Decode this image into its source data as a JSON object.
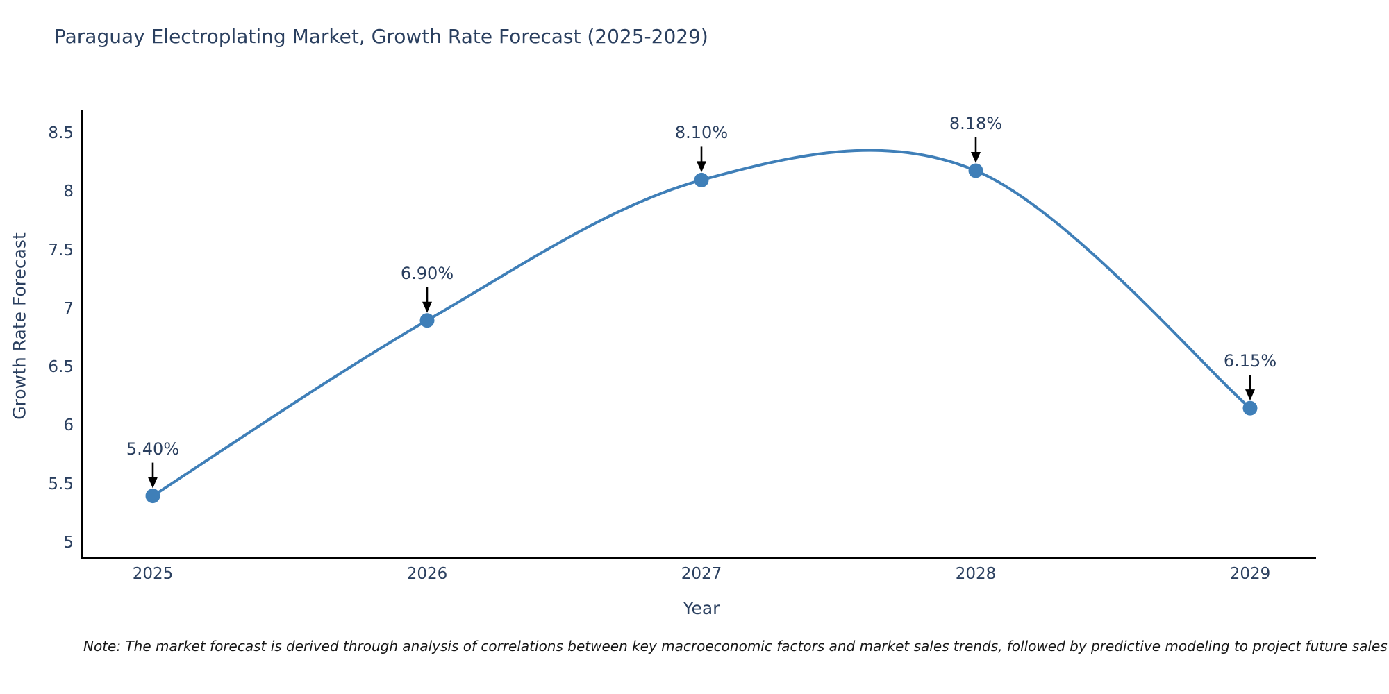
{
  "chart_data": {
    "type": "line",
    "title": "Paraguay Electroplating Market, Growth Rate Forecast (2025-2029)",
    "xlabel": "Year",
    "ylabel": "Growth Rate Forecast",
    "categories": [
      "2025",
      "2026",
      "2027",
      "2028",
      "2029"
    ],
    "values": [
      5.4,
      6.9,
      8.1,
      8.18,
      6.15
    ],
    "point_labels": [
      "5.40%",
      "6.90%",
      "8.10%",
      "8.18%",
      "6.15%"
    ],
    "series_name": "Growth Rate Forecast",
    "ylim": [
      5,
      8.5
    ],
    "yticks": [
      {
        "value": 5,
        "label": "5"
      },
      {
        "value": 5.5,
        "label": "5.5"
      },
      {
        "value": 6,
        "label": "6"
      },
      {
        "value": 6.5,
        "label": "6.5"
      },
      {
        "value": 7,
        "label": "7"
      },
      {
        "value": 7.5,
        "label": "7.5"
      },
      {
        "value": 8,
        "label": "8"
      },
      {
        "value": 8.5,
        "label": "8.5"
      }
    ],
    "grid": false,
    "legend": false,
    "curve": "smooth",
    "line_color": "#3f7fb8",
    "marker_color": "#3f7fb8",
    "annotation_arrow_color": "#000000",
    "axis_color": "#000000",
    "text_color": "#2a3f5f",
    "background_color": "#ffffff"
  },
  "note": {
    "text": "Note: The market forecast is derived through analysis of correlations between key macroeconomic factors and market sales trends, followed by predictive modeling to project future sales"
  }
}
